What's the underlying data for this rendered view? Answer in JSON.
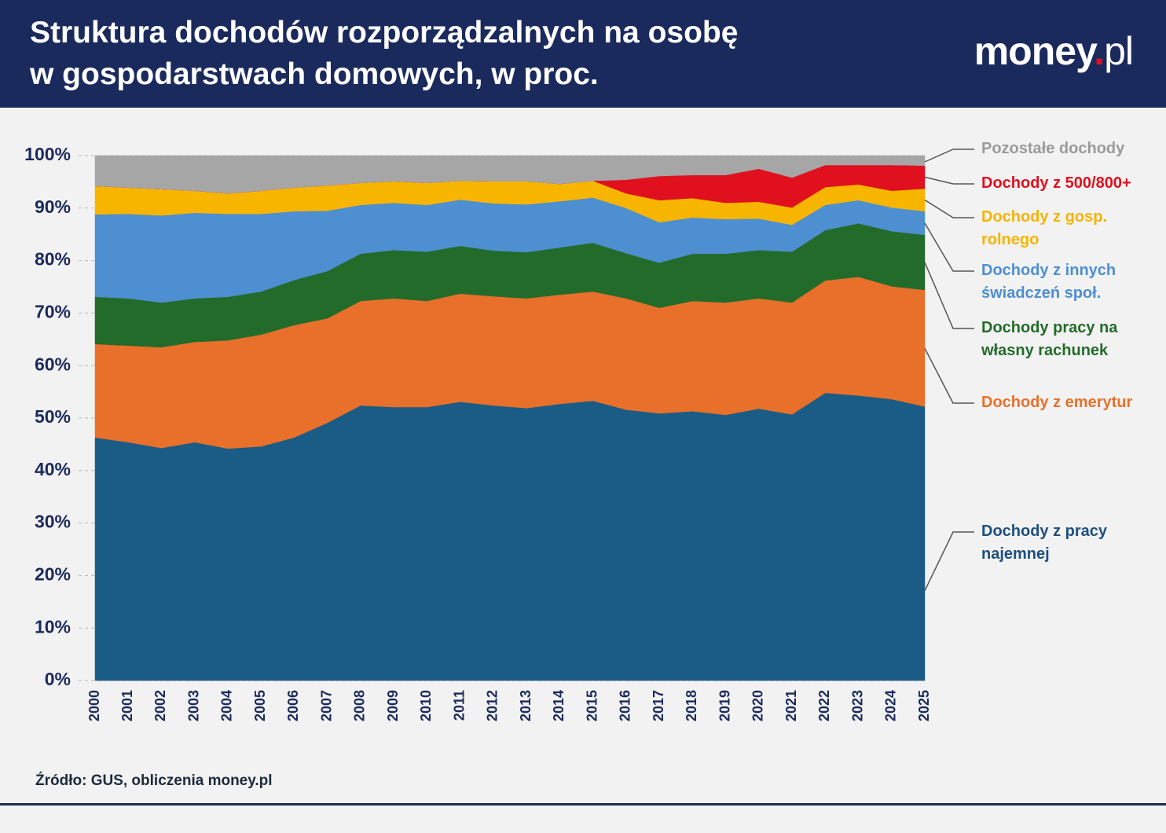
{
  "header": {
    "logo": {
      "name": "money",
      "dot": ".",
      "suffix": "pl"
    }
  },
  "chart_data": {
    "type": "stacked-area",
    "title": [
      "Struktura dochodów rozporządzalnych na osobę",
      "w gospodarstwach domowych, w proc."
    ],
    "source": "Źródło: GUS, obliczenia money.pl",
    "x": [
      2000,
      2001,
      2002,
      2003,
      2004,
      2005,
      2006,
      2007,
      2008,
      2009,
      2010,
      2011,
      2012,
      2013,
      2014,
      2015,
      2016,
      2017,
      2018,
      2019,
      2020,
      2021,
      2022,
      2023,
      2024,
      2025
    ],
    "xlim": [
      2000,
      2025
    ],
    "xticks": [
      2000,
      2001,
      2002,
      2003,
      2004,
      2005,
      2006,
      2007,
      2008,
      2009,
      2010,
      2011,
      2012,
      2013,
      2014,
      2015,
      2016,
      2017,
      2018,
      2019,
      2020,
      2021,
      2022,
      2023,
      2024,
      2025
    ],
    "ylim": [
      0,
      100
    ],
    "yticks": [
      {
        "value": 0,
        "label": "0%"
      },
      {
        "value": 10,
        "label": "10%"
      },
      {
        "value": 20,
        "label": "20%"
      },
      {
        "value": 30,
        "label": "30%"
      },
      {
        "value": 40,
        "label": "40%"
      },
      {
        "value": 50,
        "label": "50%"
      },
      {
        "value": 60,
        "label": "60%"
      },
      {
        "value": 70,
        "label": "70%"
      },
      {
        "value": 80,
        "label": "80%"
      },
      {
        "value": 90,
        "label": "90%"
      },
      {
        "value": 100,
        "label": "100%"
      }
    ],
    "grid": true,
    "series": [
      {
        "name": "Dochody z pracy najemnej",
        "color": "#1a5c85",
        "label_color": "#1d4f80",
        "values": [
          46.3,
          45.4,
          44.3,
          45.4,
          44.2,
          44.6,
          46.3,
          49.1,
          52.4,
          52.1,
          52.1,
          53.1,
          52.4,
          51.9,
          52.7,
          53.3,
          51.6,
          50.9,
          51.3,
          50.6,
          51.8,
          50.7,
          54.8,
          54.3,
          53.6,
          52.2
        ]
      },
      {
        "name": "Dochody z emerytur",
        "color": "#e8702a",
        "label_color": "#e8702a",
        "values": [
          17.8,
          18.4,
          19.2,
          19.1,
          20.6,
          21.3,
          21.4,
          19.9,
          19.9,
          20.7,
          20.2,
          20.6,
          20.8,
          20.9,
          20.8,
          20.8,
          21.2,
          20.1,
          21.0,
          21.4,
          21.0,
          21.3,
          21.4,
          22.6,
          21.5,
          22.2
        ]
      },
      {
        "name": "Dochody pracy na własny rachunek",
        "color": "#236b2a",
        "label_color": "#236b2a",
        "values": [
          9.0,
          9.0,
          8.5,
          8.3,
          8.3,
          8.2,
          8.6,
          9.0,
          9.0,
          9.2,
          9.4,
          9.1,
          8.7,
          8.8,
          9.0,
          9.3,
          8.6,
          8.6,
          9.0,
          9.3,
          9.2,
          9.7,
          9.6,
          10.2,
          10.5,
          10.5
        ]
      },
      {
        "name": "Dochody z innych świadczeń społ.",
        "color": "#4d8fd1",
        "label_color": "#4d8fd1",
        "values": [
          15.7,
          16.1,
          16.6,
          16.3,
          15.8,
          14.8,
          13.1,
          11.5,
          9.3,
          9.0,
          8.9,
          8.8,
          9.0,
          9.1,
          8.8,
          8.6,
          8.6,
          7.7,
          6.9,
          6.6,
          6.0,
          5.1,
          4.8,
          4.4,
          4.5,
          4.5
        ]
      },
      {
        "name": "Dochody z gosp. rolnego",
        "color": "#f7b500",
        "label_color": "#f5b400",
        "values": [
          5.4,
          5.0,
          5.0,
          4.2,
          3.9,
          4.4,
          4.5,
          4.8,
          4.2,
          4.1,
          4.2,
          3.6,
          4.2,
          4.4,
          3.3,
          3.2,
          2.8,
          4.2,
          3.7,
          3.1,
          3.2,
          3.3,
          3.4,
          3.0,
          3.2,
          4.3
        ]
      },
      {
        "name": "Dochody z 500/800+",
        "color": "#e0101e",
        "label_color": "#e0101e",
        "values": [
          0,
          0,
          0,
          0,
          0,
          0,
          0,
          0,
          0,
          0,
          0,
          0,
          0,
          0,
          0,
          0,
          2.6,
          4.6,
          4.4,
          5.3,
          6.3,
          5.7,
          4.2,
          3.7,
          4.9,
          4.4
        ]
      },
      {
        "name": "Pozostałe dochody",
        "color": "#a6a6a6",
        "label_color": "#9a9a9a",
        "values": [
          5.8,
          6.1,
          6.4,
          6.7,
          7.2,
          6.7,
          6.1,
          5.7,
          5.2,
          4.9,
          5.2,
          4.8,
          4.9,
          4.9,
          5.4,
          4.8,
          4.6,
          3.9,
          3.7,
          3.7,
          2.5,
          4.2,
          1.8,
          1.8,
          1.8,
          1.9
        ]
      }
    ]
  }
}
